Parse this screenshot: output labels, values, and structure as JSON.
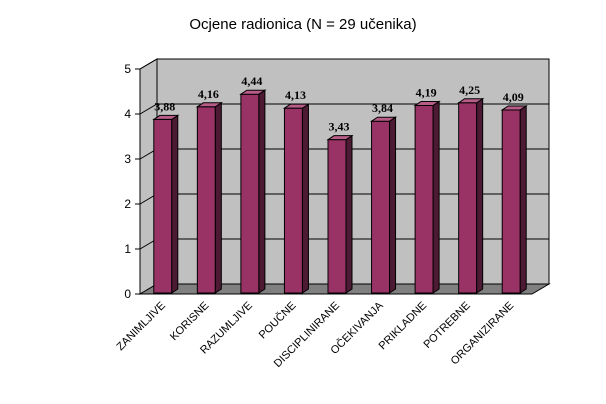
{
  "chart_data": {
    "type": "bar",
    "title": "Ocjene radionica (N = 29 učenika)",
    "categories": [
      "ZANIMLJIVE",
      "KORISNE",
      "RAZUMLJIVE",
      "POUČNE",
      "DISCIPLINIRANE",
      "OČEKIVANJA",
      "PRIKLADNE",
      "POTREBNE",
      "ORGANIZIRANE"
    ],
    "values": [
      3.88,
      4.16,
      4.44,
      4.13,
      3.43,
      3.84,
      4.19,
      4.25,
      4.09
    ],
    "value_labels": [
      "3,88",
      "4,16",
      "4,44",
      "4,13",
      "3,43",
      "3,84",
      "4,19",
      "4,25",
      "4,09"
    ],
    "y_ticks": [
      "0",
      "1",
      "2",
      "3",
      "4",
      "5"
    ],
    "ylim": [
      0,
      5
    ],
    "grid": true,
    "legend": "none",
    "colors": {
      "bar_front": "#993366",
      "bar_side": "#4d1a33",
      "bar_top": "#b85c88",
      "back_wall": "#c0c0c0",
      "floor": "#808080"
    }
  }
}
